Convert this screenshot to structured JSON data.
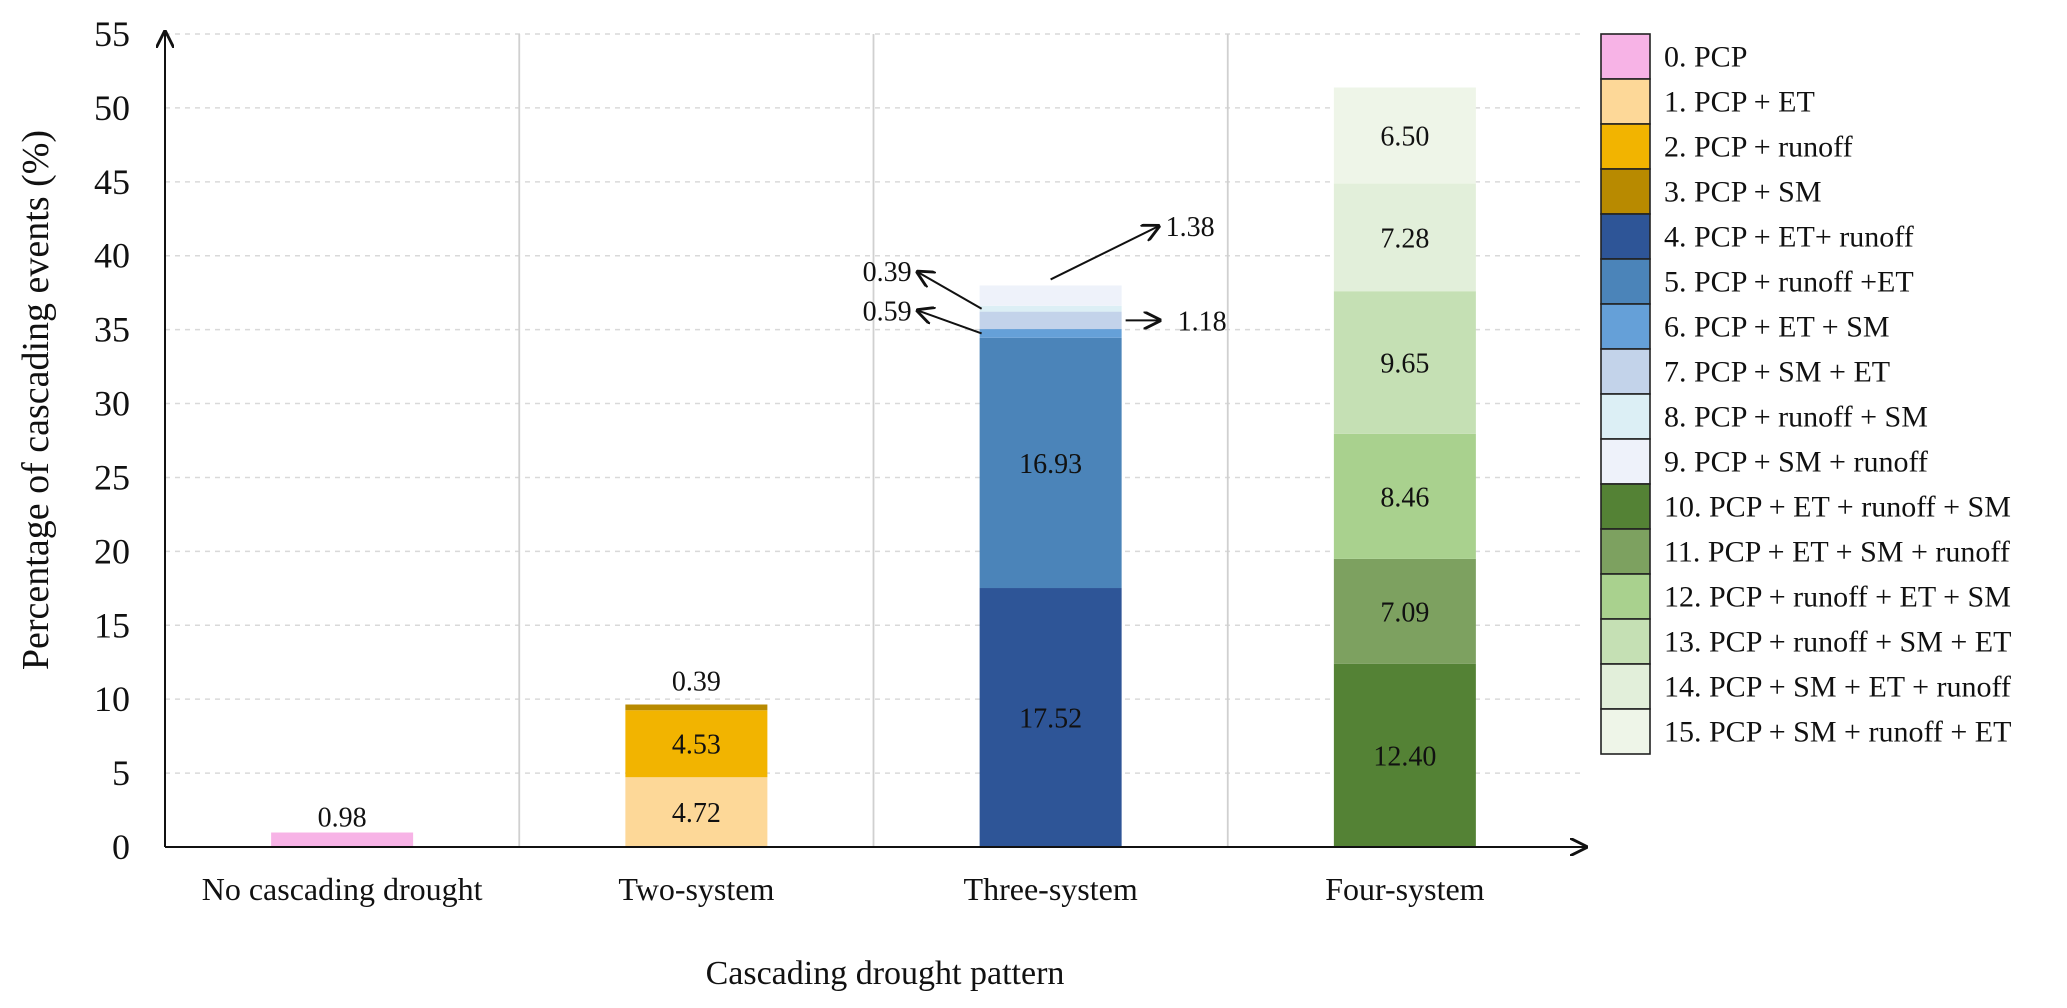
{
  "chart_data": {
    "type": "bar",
    "stacked": true,
    "ylabel": "Percentage of cascading events (%)",
    "xlabel": "Cascading drought pattern",
    "ylim": [
      0,
      55
    ],
    "yticks": [
      "0",
      "5",
      "10",
      "15",
      "20",
      "25",
      "30",
      "35",
      "40",
      "45",
      "50",
      "55"
    ],
    "grid": "horizontal dashed, vertical separators between categories",
    "legend_position": "right",
    "categories": [
      "No cascading drought",
      "Two-system",
      "Three-system",
      "Four-system"
    ],
    "series": [
      {
        "name": "0. PCP",
        "color": "#F7B3E6"
      },
      {
        "name": "1. PCP + ET",
        "color": "#FDD898"
      },
      {
        "name": "2. PCP + runoff",
        "color": "#F2B400"
      },
      {
        "name": "3. PCP + SM",
        "color": "#B88A00"
      },
      {
        "name": "4. PCP + ET+ runoff",
        "color": "#2E5597"
      },
      {
        "name": "5. PCP + runoff +ET",
        "color": "#4B84B9"
      },
      {
        "name": "6. PCP + ET + SM",
        "color": "#65A0D8"
      },
      {
        "name": "7. PCP + SM + ET",
        "color": "#C3D3EA"
      },
      {
        "name": "8. PCP + runoff + SM",
        "color": "#DCEFF5"
      },
      {
        "name": "9. PCP + SM + runoff",
        "color": "#EEF2FA"
      },
      {
        "name": "10. PCP + ET + runoff + SM",
        "color": "#548235"
      },
      {
        "name": "11. PCP + ET + SM + runoff",
        "color": "#7DA160"
      },
      {
        "name": "12. PCP + runoff + ET + SM",
        "color": "#A9D18E"
      },
      {
        "name": "13. PCP + runoff + SM + ET",
        "color": "#C5E0B4"
      },
      {
        "name": "14. PCP + SM + ET + runoff",
        "color": "#E2EFDA"
      },
      {
        "name": "15. PCP + SM + runoff + ET",
        "color": "#EEF5E8"
      }
    ],
    "bars": [
      {
        "category": "No cascading drought",
        "segments": [
          {
            "series": 0,
            "value": 0.98,
            "label": "0.98"
          }
        ]
      },
      {
        "category": "Two-system",
        "segments": [
          {
            "series": 1,
            "value": 4.72,
            "label": "4.72"
          },
          {
            "series": 2,
            "value": 4.53,
            "label": "4.53"
          },
          {
            "series": 3,
            "value": 0.39,
            "label": "0.39"
          }
        ]
      },
      {
        "category": "Three-system",
        "segments": [
          {
            "series": 4,
            "value": 17.52,
            "label": "17.52"
          },
          {
            "series": 5,
            "value": 16.93,
            "label": "16.93"
          },
          {
            "series": 6,
            "value": 0.59,
            "label": "0.59"
          },
          {
            "series": 7,
            "value": 1.18,
            "label": "1.18"
          },
          {
            "series": 8,
            "value": 0.39,
            "label": "0.39"
          },
          {
            "series": 9,
            "value": 1.38,
            "label": "1.38"
          }
        ]
      },
      {
        "category": "Four-system",
        "segments": [
          {
            "series": 10,
            "value": 12.4,
            "label": "12.40"
          },
          {
            "series": 11,
            "value": 7.09,
            "label": "7.09"
          },
          {
            "series": 12,
            "value": 8.46,
            "label": "8.46"
          },
          {
            "series": 13,
            "value": 9.65,
            "label": "9.65"
          },
          {
            "series": 14,
            "value": 7.28,
            "label": "7.28"
          },
          {
            "series": 15,
            "value": 6.5,
            "label": "6.50"
          }
        ]
      }
    ]
  }
}
